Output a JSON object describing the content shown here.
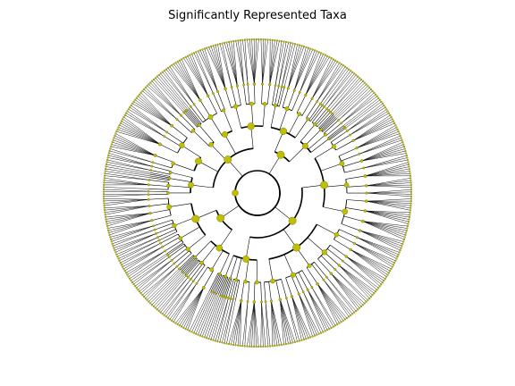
{
  "figure": {
    "title": "Significantly Represented Taxa"
  },
  "colors": {
    "node_fill": "#bfbf00",
    "node_stroke": "#6b6b00",
    "branch": "#000000",
    "background": "#ffffff"
  },
  "chart_data": {
    "type": "circular-cladogram",
    "title": "Significantly Represented Taxa",
    "ring_count": 5,
    "leaf_count": 420,
    "highlighted_nodes": "yellow circles at internal branch points"
  }
}
